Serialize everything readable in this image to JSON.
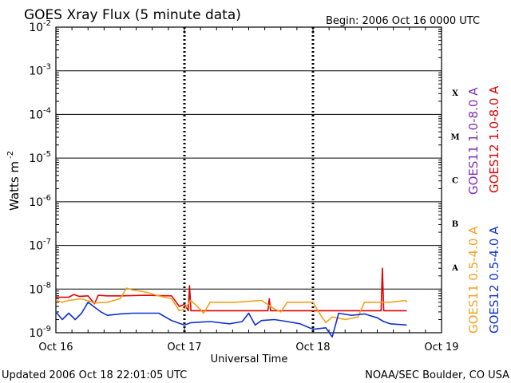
{
  "header": {
    "title": "GOES Xray Flux (5 minute data)",
    "begin": "Begin:  2006 Oct 16 0000 UTC"
  },
  "footer": {
    "updated": "Updated 2006 Oct 18 22:01:05 UTC",
    "credit": "NOAA/SEC Boulder, CO USA"
  },
  "chart_data": {
    "type": "line",
    "title": "GOES Xray Flux (5 minute data)",
    "xlabel": "Universal Time",
    "ylabel": "Watts m",
    "ylabel_sup": "-2",
    "y_scale": "log",
    "ylim": [
      1e-09,
      0.01
    ],
    "xlim_days": [
      0,
      3
    ],
    "x_tick_labels": [
      "Oct 16",
      "Oct 17",
      "Oct 18",
      "Oct 19"
    ],
    "y_ticks": [
      {
        "base": "10",
        "exp": "-2"
      },
      {
        "base": "10",
        "exp": "-3"
      },
      {
        "base": "10",
        "exp": "-4"
      },
      {
        "base": "10",
        "exp": "-5"
      },
      {
        "base": "10",
        "exp": "-6"
      },
      {
        "base": "10",
        "exp": "-7"
      },
      {
        "base": "10",
        "exp": "-8"
      },
      {
        "base": "10",
        "exp": "-9"
      }
    ],
    "flare_classes": [
      {
        "label": "X",
        "level": 0.0001
      },
      {
        "label": "M",
        "level": 1e-05
      },
      {
        "label": "C",
        "level": 1e-06
      },
      {
        "label": "B",
        "level": 1e-07
      },
      {
        "label": "A",
        "level": 1e-08
      }
    ],
    "grid": true,
    "colors": {
      "goes11_long": "#8030b0",
      "goes12_long": "#e00000",
      "goes11_short": "#f0a020",
      "goes12_short": "#1030d0"
    },
    "series": [
      {
        "name": "GOES11 1.0-8.0 A",
        "color_key": "goes11_long",
        "points": []
      },
      {
        "name": "GOES12 1.0-8.0 A",
        "color_key": "goes12_long",
        "points": [
          [
            0.0,
            6.5e-09
          ],
          [
            0.1,
            6.5e-09
          ],
          [
            0.14,
            7.5e-09
          ],
          [
            0.18,
            6.8e-09
          ],
          [
            0.25,
            7e-09
          ],
          [
            0.3,
            4.6e-09
          ],
          [
            0.33,
            7.2e-09
          ],
          [
            0.4,
            7e-09
          ],
          [
            0.5,
            7e-09
          ],
          [
            0.7,
            7.2e-09
          ],
          [
            0.9,
            7e-09
          ],
          [
            0.96,
            4e-09
          ],
          [
            1.0,
            4.5e-09
          ],
          [
            1.03,
            3.2e-09
          ],
          [
            1.04,
            1.2e-08
          ],
          [
            1.05,
            3.2e-09
          ],
          [
            1.1,
            3.2e-09
          ],
          [
            1.6,
            3.2e-09
          ],
          [
            1.65,
            3.2e-09
          ],
          [
            1.66,
            6e-09
          ],
          [
            1.67,
            3.2e-09
          ],
          [
            2.0,
            3.2e-09
          ],
          [
            2.5,
            3.2e-09
          ],
          [
            2.53,
            3.2e-09
          ],
          [
            2.54,
            3e-08
          ],
          [
            2.55,
            3.2e-09
          ],
          [
            2.6,
            3.2e-09
          ],
          [
            2.73,
            3.2e-09
          ]
        ]
      },
      {
        "name": "GOES11 0.5-4.0 A",
        "color_key": "goes11_short",
        "points": [
          [
            0.0,
            5.5e-09
          ],
          [
            0.05,
            5e-09
          ],
          [
            0.1,
            5.5e-09
          ],
          [
            0.2,
            6e-09
          ],
          [
            0.3,
            4.8e-09
          ],
          [
            0.4,
            5e-09
          ],
          [
            0.5,
            6e-09
          ],
          [
            0.55,
            1.05e-08
          ],
          [
            0.6,
            9.5e-09
          ],
          [
            0.7,
            8.5e-09
          ],
          [
            0.8,
            7e-09
          ],
          [
            0.9,
            6e-09
          ],
          [
            0.96,
            3.2e-09
          ],
          [
            1.0,
            3.5e-09
          ],
          [
            1.05,
            5.5e-09
          ],
          [
            1.1,
            4e-09
          ],
          [
            1.15,
            2.8e-09
          ],
          [
            1.2,
            5e-09
          ],
          [
            1.4,
            5e-09
          ],
          [
            1.6,
            5.5e-09
          ],
          [
            1.7,
            3.5e-09
          ],
          [
            1.75,
            3e-09
          ],
          [
            1.8,
            5e-09
          ],
          [
            2.0,
            5e-09
          ],
          [
            2.05,
            2.8e-09
          ],
          [
            2.1,
            1.7e-09
          ],
          [
            2.15,
            2.3e-09
          ],
          [
            2.25,
            2e-09
          ],
          [
            2.35,
            2.3e-09
          ],
          [
            2.4,
            5e-09
          ],
          [
            2.6,
            5e-09
          ],
          [
            2.72,
            5.5e-09
          ],
          [
            2.73,
            5e-09
          ]
        ]
      },
      {
        "name": "GOES12 0.5-4.0 A",
        "color_key": "goes12_short",
        "points": [
          [
            0.0,
            3e-09
          ],
          [
            0.05,
            2e-09
          ],
          [
            0.1,
            2.8e-09
          ],
          [
            0.15,
            2e-09
          ],
          [
            0.2,
            2.8e-09
          ],
          [
            0.25,
            5e-09
          ],
          [
            0.35,
            3e-09
          ],
          [
            0.4,
            2.5e-09
          ],
          [
            0.5,
            2.7e-09
          ],
          [
            0.6,
            2.8e-09
          ],
          [
            0.8,
            2.8e-09
          ],
          [
            0.9,
            1.9e-09
          ],
          [
            1.0,
            1.5e-09
          ],
          [
            1.05,
            1.7e-09
          ],
          [
            1.2,
            1.8e-09
          ],
          [
            1.35,
            1.6e-09
          ],
          [
            1.45,
            1.8e-09
          ],
          [
            1.5,
            2.8e-09
          ],
          [
            1.55,
            1.5e-09
          ],
          [
            1.6,
            1.9e-09
          ],
          [
            1.7,
            2e-09
          ],
          [
            1.8,
            1.8e-09
          ],
          [
            1.9,
            1.6e-09
          ],
          [
            2.0,
            1.2e-09
          ],
          [
            2.1,
            1.3e-09
          ],
          [
            2.15,
            8e-10
          ],
          [
            2.2,
            2.8e-09
          ],
          [
            2.3,
            2.5e-09
          ],
          [
            2.4,
            2.7e-09
          ],
          [
            2.5,
            2.2e-09
          ],
          [
            2.55,
            1.8e-09
          ],
          [
            2.6,
            1.6e-09
          ],
          [
            2.73,
            1.5e-09
          ]
        ]
      }
    ]
  }
}
